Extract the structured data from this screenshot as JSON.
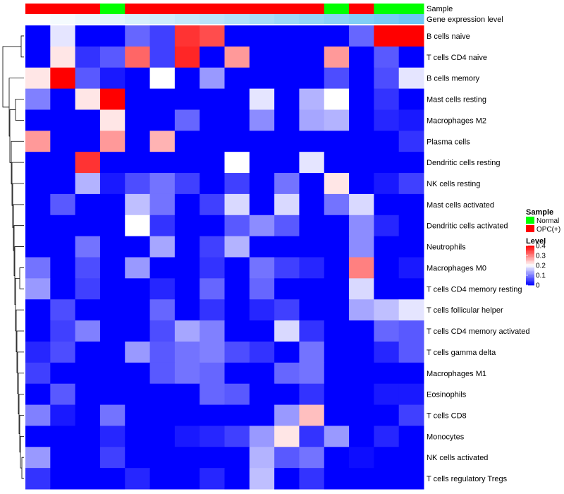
{
  "chart_data": {
    "type": "heatmap",
    "title": "",
    "annotation_titles": {
      "sample": "Sample",
      "level": "Gene expression level"
    },
    "rows": [
      "B cells naive",
      "T cells CD4 naive",
      "B cells memory",
      "Mast cells resting",
      "Macrophages M2",
      "Plasma cells",
      "Dendritic cells resting",
      "NK cells resting",
      "Mast cells activated",
      "Dendritic cells activated",
      "Neutrophils",
      "Macrophages M0",
      "T cells CD4 memory resting",
      "T cells follicular helper",
      "T cells CD4 memory activated",
      "T cells gamma delta",
      "Macrophages M1",
      "Eosinophils",
      "T cells CD8",
      "Monocytes",
      "NK cells activated",
      "T cells regulatory  Tregs"
    ],
    "sample_groups": [
      "OPC(+)",
      "OPC(+)",
      "OPC(+)",
      "Normal",
      "OPC(+)",
      "OPC(+)",
      "OPC(+)",
      "OPC(+)",
      "OPC(+)",
      "OPC(+)",
      "OPC(+)",
      "OPC(+)",
      "Normal",
      "OPC(+)",
      "Normal",
      "Normal"
    ],
    "sample_level": [
      0.02,
      0.03,
      0.04,
      0.05,
      0.06,
      0.07,
      0.08,
      0.09,
      0.1,
      0.11,
      0.12,
      0.13,
      0.14,
      0.15,
      0.16,
      0.17
    ],
    "values": [
      [
        0,
        0.18,
        0,
        0,
        0.08,
        0.05,
        0.36,
        0.34,
        0,
        0,
        0,
        0,
        0,
        0.08,
        0.4,
        0.4
      ],
      [
        0,
        0.22,
        0.04,
        0.07,
        0.32,
        0.05,
        0.37,
        0,
        0.28,
        0,
        0,
        0,
        0.28,
        0,
        0.07,
        0
      ],
      [
        0.22,
        0.4,
        0.07,
        0.02,
        0,
        0.2,
        0,
        0.12,
        0,
        0,
        0,
        0,
        0.06,
        0,
        0.06,
        0.18
      ],
      [
        0.1,
        0,
        0.22,
        0.4,
        0,
        0,
        0,
        0,
        0,
        0.18,
        0,
        0.14,
        0.2,
        0,
        0.04,
        0
      ],
      [
        0,
        0,
        0,
        0.22,
        0,
        0,
        0.08,
        0,
        0,
        0.11,
        0,
        0.13,
        0.14,
        0,
        0.03,
        0.02
      ],
      [
        0.28,
        0,
        0,
        0.28,
        0,
        0.26,
        0,
        0,
        0,
        0,
        0,
        0,
        0,
        0,
        0,
        0.04
      ],
      [
        0,
        0,
        0.36,
        0,
        0,
        0,
        0,
        0,
        0.2,
        0,
        0,
        0.18,
        0,
        0,
        0,
        0
      ],
      [
        0,
        0,
        0.14,
        0.02,
        0.06,
        0.09,
        0.05,
        0,
        0.05,
        0,
        0.09,
        0,
        0.22,
        0,
        0.02,
        0.05
      ],
      [
        0,
        0.07,
        0,
        0,
        0.15,
        0.09,
        0,
        0.05,
        0.17,
        0,
        0.17,
        0,
        0.09,
        0.17,
        0,
        0
      ],
      [
        0,
        0,
        0,
        0,
        0.2,
        0.04,
        0,
        0,
        0.07,
        0.11,
        0.07,
        0,
        0,
        0.11,
        0.03,
        0
      ],
      [
        0,
        0,
        0.09,
        0,
        0,
        0.13,
        0,
        0.05,
        0.14,
        0,
        0,
        0,
        0,
        0.11,
        0,
        0
      ],
      [
        0.09,
        0,
        0.06,
        0,
        0.12,
        0,
        0,
        0.04,
        0,
        0.09,
        0.05,
        0.03,
        0,
        0.3,
        0,
        0.02
      ],
      [
        0.12,
        0,
        0.05,
        0,
        0,
        0.03,
        0,
        0.08,
        0,
        0.08,
        0,
        0,
        0,
        0.17,
        0,
        0
      ],
      [
        0,
        0.06,
        0,
        0,
        0,
        0.08,
        0,
        0.04,
        0,
        0.03,
        0.05,
        0,
        0,
        0.13,
        0.15,
        0.18
      ],
      [
        0,
        0.05,
        0.1,
        0,
        0,
        0.06,
        0.13,
        0.1,
        0,
        0,
        0.17,
        0.04,
        0,
        0,
        0.08,
        0.07
      ],
      [
        0.03,
        0.06,
        0,
        0,
        0.12,
        0.07,
        0.09,
        0.1,
        0.06,
        0.04,
        0,
        0.09,
        0,
        0,
        0.03,
        0.07
      ],
      [
        0.05,
        0,
        0,
        0,
        0,
        0.07,
        0.09,
        0.08,
        0,
        0,
        0.08,
        0.09,
        0,
        0,
        0,
        0
      ],
      [
        0,
        0.07,
        0,
        0,
        0,
        0,
        0,
        0.08,
        0.07,
        0,
        0,
        0.04,
        0,
        0,
        0.02,
        0.02
      ],
      [
        0.1,
        0.02,
        0,
        0.09,
        0,
        0,
        0,
        0,
        0,
        0,
        0.12,
        0.25,
        0,
        0,
        0,
        0.05
      ],
      [
        0,
        0,
        0,
        0.03,
        0,
        0,
        0.02,
        0.03,
        0.05,
        0.12,
        0.22,
        0.04,
        0.12,
        0,
        0.03,
        0
      ],
      [
        0.12,
        0,
        0,
        0.05,
        0,
        0,
        0,
        0,
        0,
        0.14,
        0.07,
        0.09,
        0,
        0.01,
        0,
        0
      ],
      [
        0.04,
        0,
        0,
        0,
        0.03,
        0,
        0,
        0.03,
        0,
        0.15,
        0,
        0.04,
        0,
        0,
        0,
        0
      ]
    ],
    "legend": {
      "sample_title": "Sample",
      "sample_entries": [
        {
          "label": "Normal",
          "color": "#00ff00"
        },
        {
          "label": "OPC(+)",
          "color": "#ff0000"
        }
      ],
      "level_title": "Level",
      "level_ticks": [
        "0.4",
        "0.3",
        "0.2",
        "0.1",
        "0"
      ],
      "level_range": [
        0,
        0.4
      ]
    },
    "colors": {
      "low": "#0000ff",
      "mid": "#ffffff",
      "high": "#ff0000",
      "level_low": "#ffffff",
      "level_high": "#6ec6f5"
    }
  }
}
